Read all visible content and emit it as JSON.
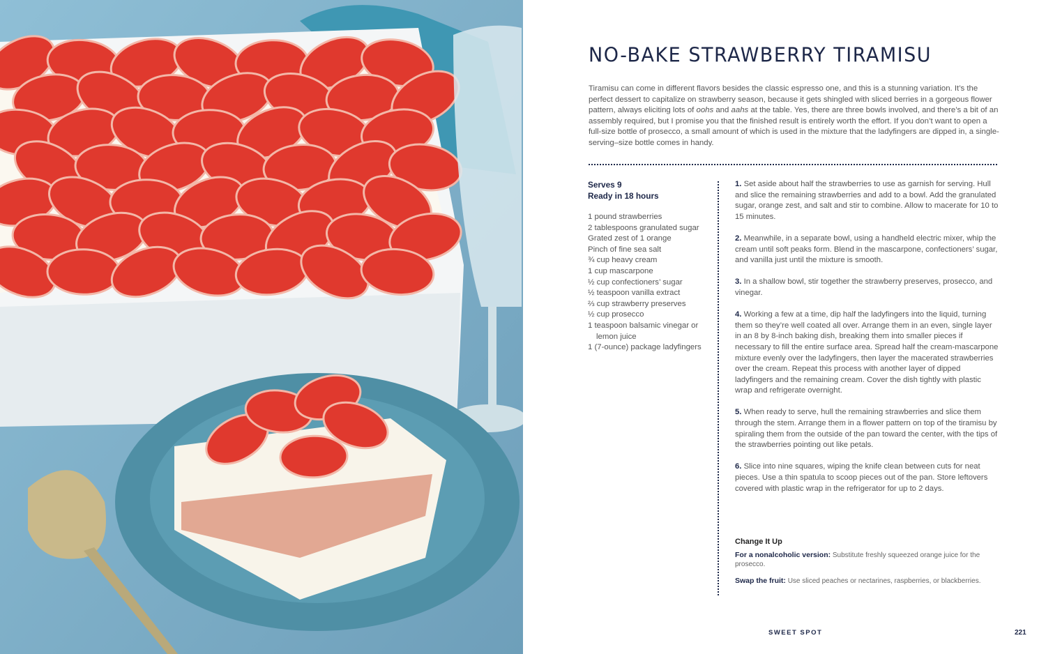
{
  "recipe": {
    "title": "NO-BAKE STRAWBERRY TIRAMISU",
    "intro_parts": [
      "Tiramisu can come in different flavors besides the classic espresso one, and this is a stunning variation. It’s the perfect dessert to capitalize on strawberry season, because it gets shingled with sliced berries in a gorgeous flower pattern, always eliciting lots of ",
      "oohs",
      " and ",
      "aahs",
      " at the table. Yes, there are three bowls involved, and there’s a bit of an assembly required, but I promise you that the finished result is entirely worth the effort. If you don’t want to open a full-size bottle of prosecco, a small amount of which is used in the mixture that the ladyfingers are dipped in, a single-serving–size bottle comes in handy."
    ],
    "serves": "Serves 9",
    "ready": "Ready in 18 hours",
    "ingredients": [
      "1 pound strawberries",
      "2 tablespoons granulated sugar",
      "Grated zest of 1 orange",
      "Pinch of fine sea salt",
      "¾ cup heavy cream",
      "1 cup mascarpone",
      "½ cup confectioners’ sugar",
      "½ teaspoon vanilla extract",
      "⅔ cup strawberry preserves",
      "½ cup prosecco",
      "1 teaspoon balsamic vinegar or lemon juice",
      "1 (7-ounce) package ladyfingers"
    ],
    "steps": [
      {
        "num": "1.",
        "text": "Set aside about half the strawberries to use as garnish for serving. Hull and slice the remaining strawberries and add to a bowl. Add the granulated sugar, orange zest, and salt and stir to combine. Allow to macerate for 10 to 15 minutes."
      },
      {
        "num": "2.",
        "text": "Meanwhile, in a separate bowl, using a handheld electric mixer, whip the cream until soft peaks form. Blend in the mascarpone, confectioners’ sugar, and vanilla just until the mixture is smooth."
      },
      {
        "num": "3.",
        "text": "In a shallow bowl, stir together the strawberry preserves, prosecco, and vinegar."
      },
      {
        "num": "4.",
        "text": "Working a few at a time, dip half the ladyfingers into the liquid, turning them so they’re well coated all over. Arrange them in an even, single layer in an 8 by 8-inch baking dish, breaking them into smaller pieces if necessary to fill the entire surface area. Spread half the cream-mascarpone mixture evenly over the ladyfingers, then layer the macerated strawberries over the cream. Repeat this process with another layer of dipped ladyfingers and the remaining cream. Cover the dish tightly with plastic wrap and refrigerate overnight."
      },
      {
        "num": "5.",
        "text": "When ready to serve, hull the remaining strawberries and slice them through the stem. Arrange them in a flower pattern on top of the tiramisu by spiraling them from the outside of the pan toward the center, with the tips of the strawberries pointing out like petals."
      },
      {
        "num": "6.",
        "text": "Slice into nine squares, wiping the knife clean between cuts for neat pieces. Use a thin spatula to scoop pieces out of the pan. Store leftovers covered with plastic wrap in the refrigerator for up to 2 days."
      }
    ],
    "change_it_up": {
      "heading": "Change It Up",
      "items": [
        {
          "label": "For a nonalcoholic version:",
          "text": " Substitute freshly squeezed orange juice for the prosecco."
        },
        {
          "label": "Swap the fruit:",
          "text": " Use sliced peaches or nectarines, raspberries, or blackberries."
        }
      ]
    }
  },
  "footer": {
    "section": "SWEET SPOT",
    "page_number": "221"
  },
  "colors": {
    "navy": "#1d2748",
    "background_blue": "#7fb0c8",
    "strawberry": "#e0392e"
  }
}
